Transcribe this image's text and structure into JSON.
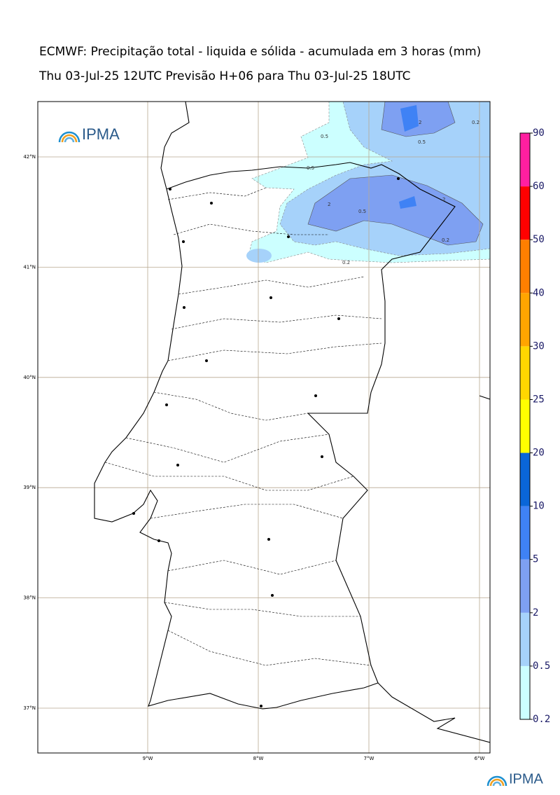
{
  "title": "ECMWF: Precipitação total - liquida e sólida - acumulada em 3 horas (mm)",
  "subtitle": "Thu 03-Jul-25 12UTC Previsão H+06 para Thu 03-Jul-25 18UTC",
  "logo_text": "IPMA",
  "map": {
    "lats": [
      {
        "value": 42,
        "label": "42°N"
      },
      {
        "value": 41,
        "label": "41°N"
      },
      {
        "value": 40,
        "label": "40°N"
      },
      {
        "value": 39,
        "label": "39°N"
      },
      {
        "value": 38,
        "label": "38°N"
      },
      {
        "value": 37,
        "label": "37°N"
      }
    ],
    "lons": [
      {
        "value": -9,
        "label": "9°W"
      },
      {
        "value": -8,
        "label": "8°W"
      },
      {
        "value": -7,
        "label": "7°W"
      },
      {
        "value": -6,
        "label": "6°W"
      }
    ],
    "contour_labels": [
      "0.5",
      "2",
      "0.5",
      "0.2",
      "0.5",
      "2",
      "0.5",
      "0.2",
      "2",
      "0.2"
    ]
  },
  "colorbar": {
    "levels": [
      0.2,
      0.5,
      2,
      5,
      10,
      20,
      25,
      30,
      40,
      50,
      60,
      90
    ],
    "colors": [
      "#ccffff",
      "#a6d2fa",
      "#7ea0f2",
      "#3f82f5",
      "#0a66d8",
      "#ffff00",
      "#ffd700",
      "#ffa500",
      "#ff7f00",
      "#ff0000",
      "#ff1fa0"
    ]
  }
}
